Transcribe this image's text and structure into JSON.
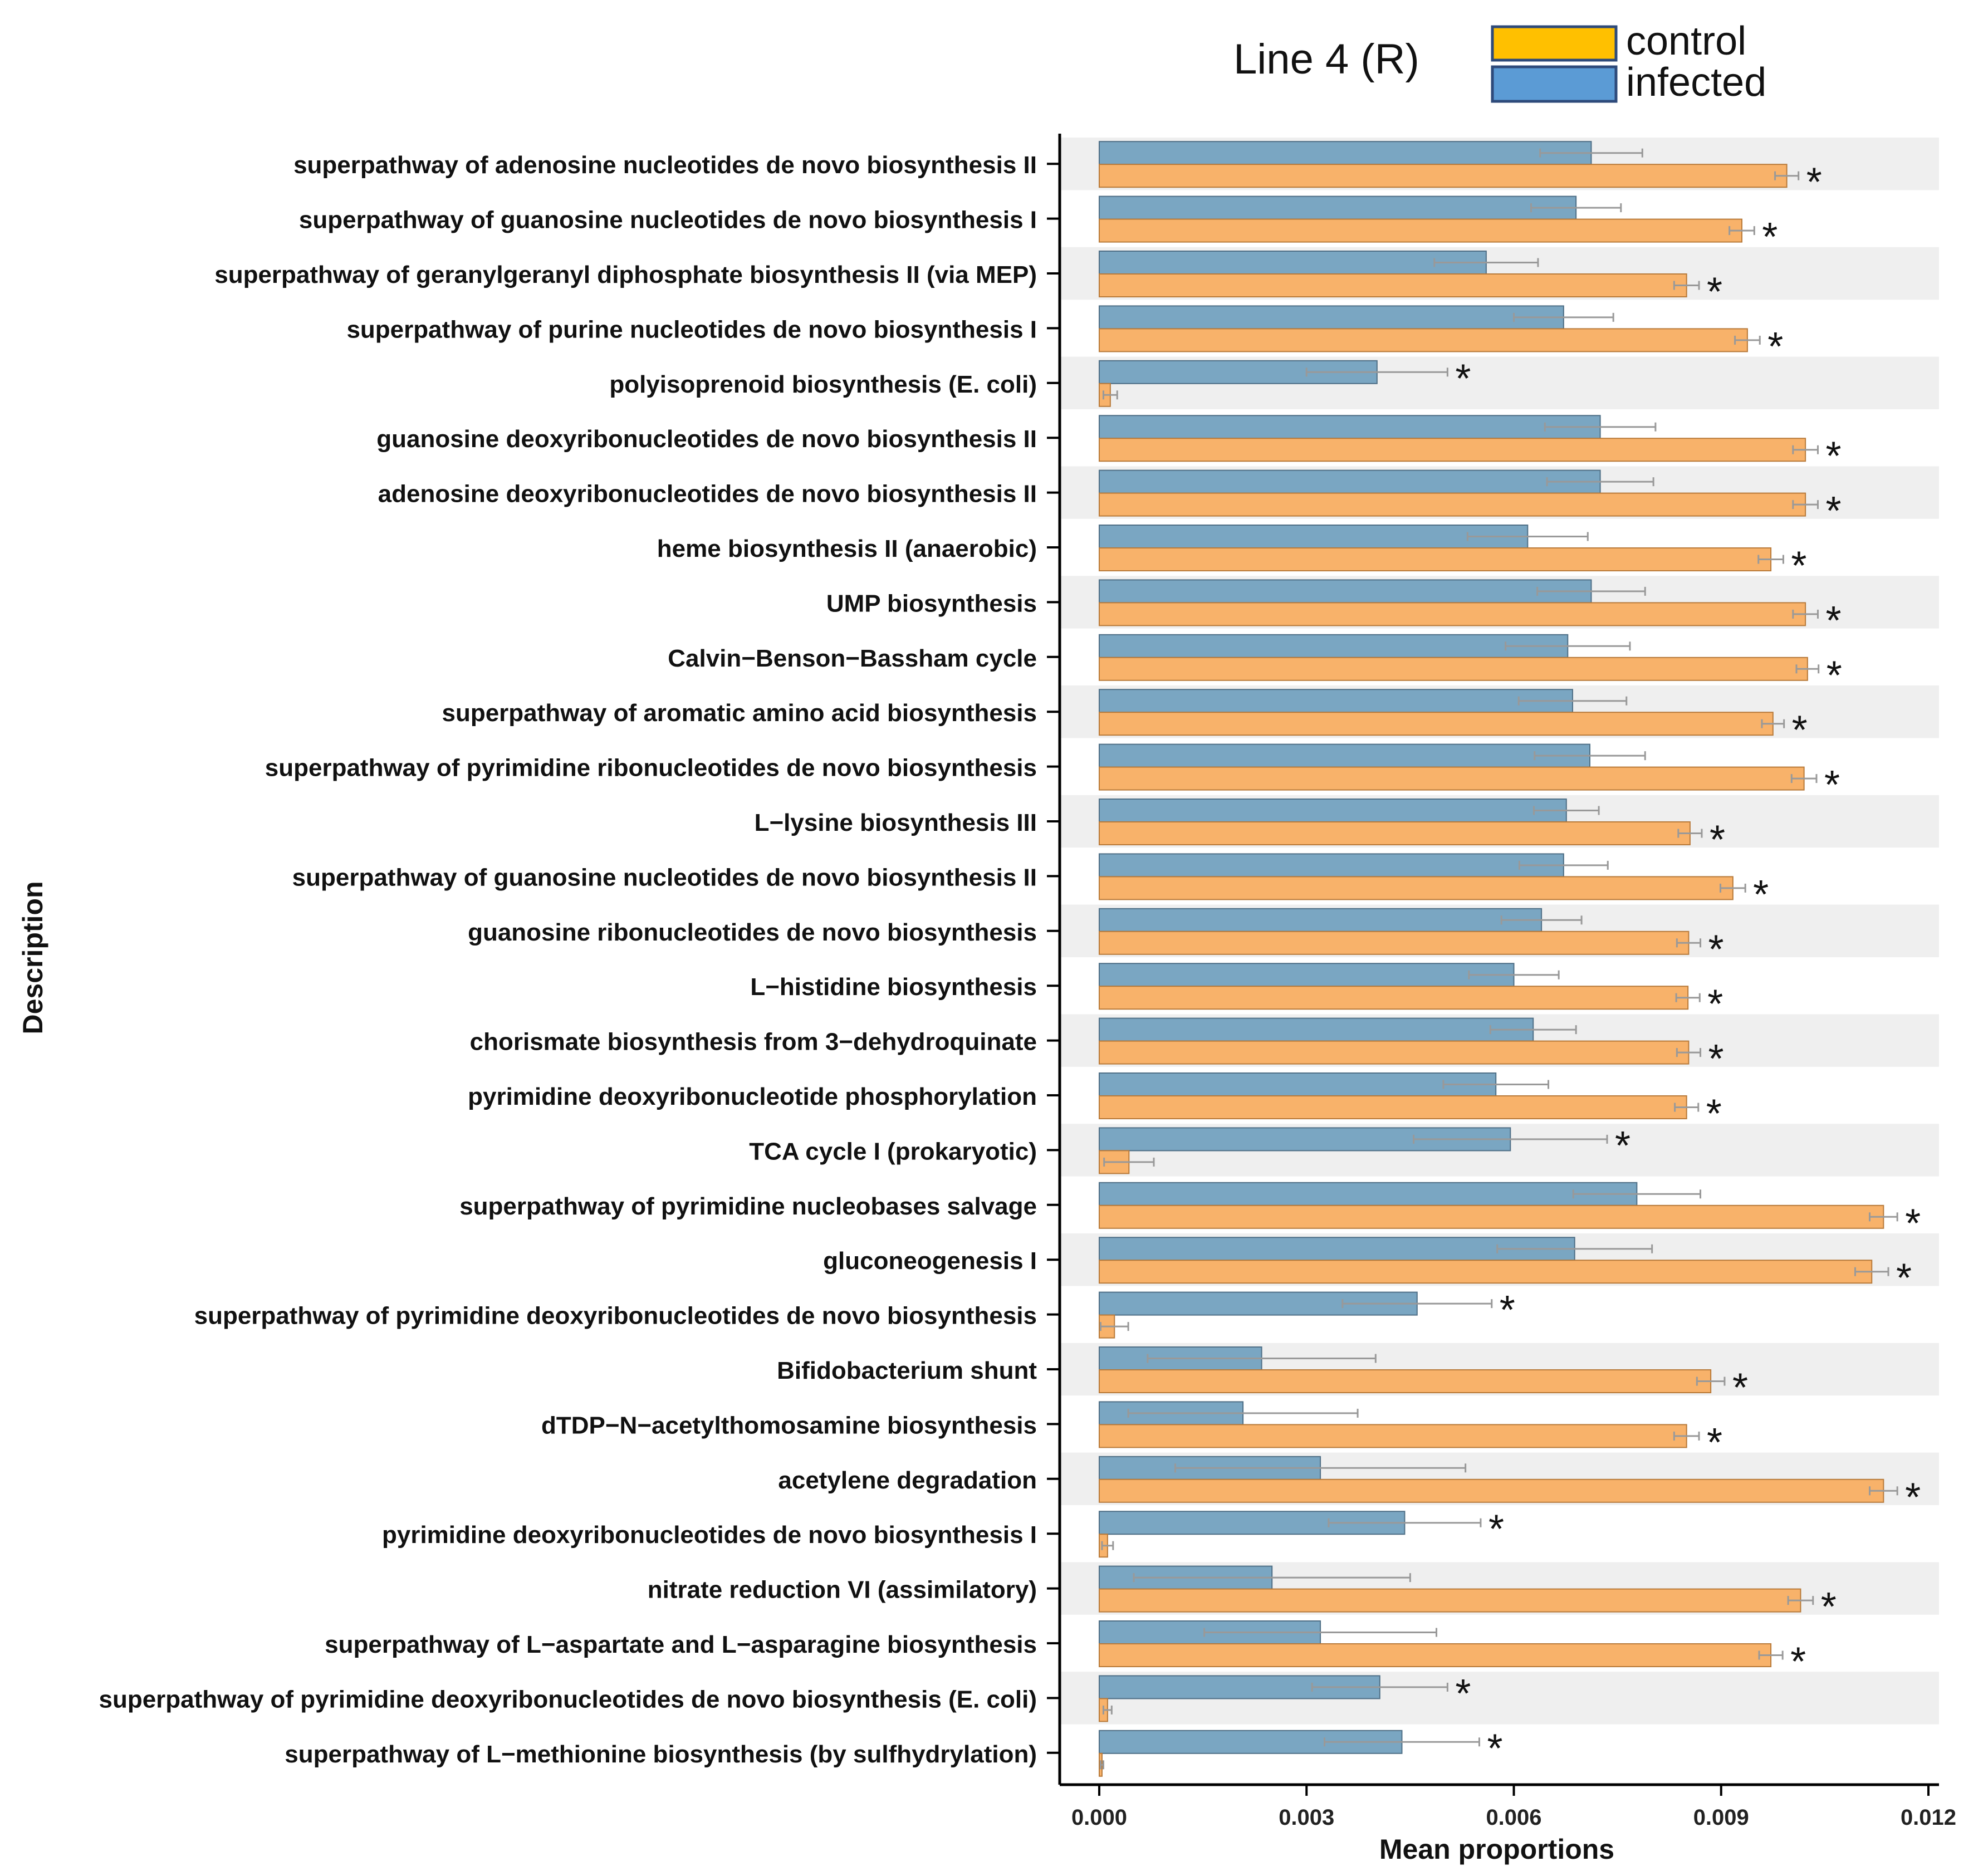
{
  "chart_data": {
    "type": "bar",
    "orientation": "horizontal",
    "title": "Line 4 (R)",
    "xlabel": "Mean proportions",
    "ylabel": "Description",
    "xlim": [
      0,
      0.012
    ],
    "xticks": [
      "0.000",
      "0.003",
      "0.006",
      "0.009",
      "0.012"
    ],
    "xtick_values": [
      0,
      0.003,
      0.006,
      0.009,
      0.012
    ],
    "significance_marker": "*",
    "legend": {
      "placement": "top-right",
      "entries": [
        {
          "label": "control",
          "color": "#FFC000"
        },
        {
          "label": "infected",
          "color": "#5B9BD5"
        }
      ]
    },
    "categories": [
      "superpathway of adenosine nucleotides de novo biosynthesis II",
      "superpathway of guanosine nucleotides de novo biosynthesis I",
      "superpathway of geranylgeranyl diphosphate biosynthesis II (via MEP)",
      "superpathway of purine nucleotides de novo biosynthesis I",
      "polyisoprenoid biosynthesis (E. coli)",
      "guanosine deoxyribonucleotides de novo biosynthesis II",
      "adenosine deoxyribonucleotides de novo biosynthesis II",
      "heme biosynthesis II (anaerobic)",
      "UMP biosynthesis",
      "Calvin−Benson−Bassham cycle",
      "superpathway of aromatic amino acid biosynthesis",
      "superpathway of pyrimidine ribonucleotides de novo biosynthesis",
      "L−lysine biosynthesis III",
      "superpathway of guanosine nucleotides de novo biosynthesis II",
      "guanosine ribonucleotides de novo biosynthesis",
      "L−histidine biosynthesis",
      "chorismate biosynthesis from 3−dehydroquinate",
      "pyrimidine deoxyribonucleotide phosphorylation",
      "TCA cycle I (prokaryotic)",
      "superpathway of pyrimidine nucleobases salvage",
      "gluconeogenesis I",
      "superpathway of pyrimidine deoxyribonucleotides de novo biosynthesis",
      "Bifidobacterium shunt",
      "dTDP−N−acetylthomosamine biosynthesis",
      "acetylene degradation",
      "pyrimidine deoxyribonucleotides de novo biosynthesis I",
      "nitrate reduction VI (assimilatory)",
      "superpathway of L−aspartate and L−asparagine biosynthesis",
      "superpathway of pyrimidine deoxyribonucleotides de novo biosynthesis (E. coli)",
      "superpathway of L−methionine biosynthesis (by sulfhydrylation)"
    ],
    "series": [
      {
        "name": "infected",
        "color": "#7AA6C2",
        "values": [
          0.00712,
          0.0069,
          0.0056,
          0.00672,
          0.00402,
          0.00725,
          0.00725,
          0.0062,
          0.00712,
          0.00678,
          0.00685,
          0.0071,
          0.00676,
          0.00672,
          0.0064,
          0.006,
          0.00628,
          0.00574,
          0.00595,
          0.00778,
          0.00688,
          0.0046,
          0.00235,
          0.00208,
          0.0032,
          0.00442,
          0.0025,
          0.0032,
          0.00406,
          0.00438
        ],
        "errors": [
          0.00074,
          0.00065,
          0.00075,
          0.00072,
          0.00102,
          0.0008,
          0.00077,
          0.00087,
          0.00078,
          0.0009,
          0.00078,
          0.0008,
          0.00047,
          0.00064,
          0.00058,
          0.00065,
          0.00062,
          0.00076,
          0.0014,
          0.00092,
          0.00112,
          0.00108,
          0.00165,
          0.00166,
          0.0021,
          0.0011,
          0.002,
          0.00168,
          0.00098,
          0.00112
        ],
        "significant": [
          false,
          false,
          false,
          false,
          true,
          false,
          false,
          false,
          false,
          false,
          false,
          false,
          false,
          false,
          false,
          false,
          false,
          false,
          true,
          false,
          false,
          true,
          false,
          false,
          false,
          true,
          false,
          false,
          true,
          true
        ]
      },
      {
        "name": "control",
        "color": "#F8B26A",
        "values": [
          0.00995,
          0.0093,
          0.0085,
          0.00938,
          0.00016,
          0.01022,
          0.01022,
          0.00972,
          0.01022,
          0.01025,
          0.00975,
          0.0102,
          0.00855,
          0.00917,
          0.00853,
          0.00852,
          0.00853,
          0.0085,
          0.00043,
          0.01135,
          0.01118,
          0.00022,
          0.00885,
          0.0085,
          0.01135,
          0.00012,
          0.01015,
          0.00972,
          0.00012,
          4e-05
        ],
        "errors": [
          0.00017,
          0.00018,
          0.00018,
          0.00018,
          0.0001,
          0.00018,
          0.00018,
          0.00018,
          0.00018,
          0.00016,
          0.00016,
          0.00018,
          0.00017,
          0.00018,
          0.00017,
          0.00017,
          0.00017,
          0.00017,
          0.00036,
          0.0002,
          0.00024,
          0.0002,
          0.0002,
          0.00018,
          0.0002,
          8e-05,
          0.00018,
          0.00017,
          6e-05,
          2e-05
        ],
        "significant": [
          true,
          true,
          true,
          true,
          false,
          true,
          true,
          true,
          true,
          true,
          true,
          true,
          true,
          true,
          true,
          true,
          true,
          true,
          false,
          true,
          true,
          false,
          true,
          true,
          true,
          false,
          true,
          true,
          false,
          false
        ]
      }
    ]
  }
}
